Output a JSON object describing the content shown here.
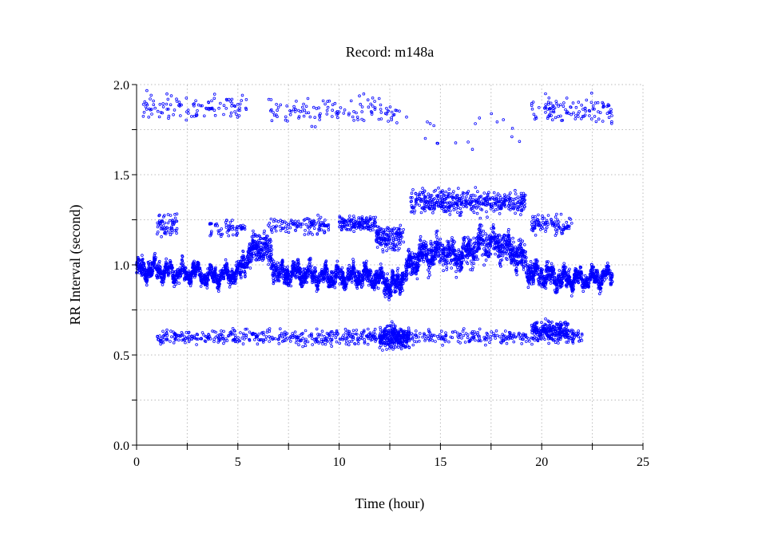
{
  "chart_data": {
    "type": "scatter",
    "title": "Record:  m148a",
    "xlabel": "Time (hour)",
    "ylabel": "RR Interval (second)",
    "xlim": [
      0,
      25
    ],
    "ylim": [
      0,
      2.0
    ],
    "xticks": [
      "0",
      "5",
      "10",
      "15",
      "20",
      "25"
    ],
    "xtick_values": [
      0,
      5,
      10,
      15,
      20,
      25
    ],
    "yticks": [
      "0.0",
      "0.5",
      "1.0",
      "1.5",
      "2.0"
    ],
    "ytick_values": [
      0,
      0.5,
      1.0,
      1.5,
      2.0
    ],
    "grid": true,
    "grid_step": {
      "x": 2.5,
      "y": 0.25
    },
    "marker": "open-circle",
    "color": "#0000ff",
    "note": "Point cloud summarised: main RR band as [hour, center, half-spread]; ectopic clusters as [hour_start, hour_end, rr_center, rr_half_spread, count]",
    "main_band": [
      [
        0,
        0.97,
        0.07
      ],
      [
        0.5,
        0.98,
        0.07
      ],
      [
        1,
        0.97,
        0.07
      ],
      [
        2,
        0.95,
        0.06
      ],
      [
        3,
        0.96,
        0.06
      ],
      [
        3.5,
        0.93,
        0.06
      ],
      [
        4,
        0.94,
        0.06
      ],
      [
        5,
        0.95,
        0.07
      ],
      [
        5.5,
        1.05,
        0.1
      ],
      [
        6,
        1.1,
        0.12
      ],
      [
        6.5,
        1.07,
        0.12
      ],
      [
        7,
        0.95,
        0.08
      ],
      [
        8,
        0.95,
        0.07
      ],
      [
        9,
        0.94,
        0.07
      ],
      [
        10,
        0.93,
        0.07
      ],
      [
        11,
        0.94,
        0.07
      ],
      [
        12,
        0.92,
        0.07
      ],
      [
        12.8,
        0.88,
        0.08
      ],
      [
        13.5,
        1.0,
        0.09
      ],
      [
        14,
        1.05,
        0.1
      ],
      [
        15,
        1.07,
        0.11
      ],
      [
        16,
        1.05,
        0.12
      ],
      [
        17,
        1.12,
        0.12
      ],
      [
        18,
        1.12,
        0.12
      ],
      [
        19,
        1.05,
        0.12
      ],
      [
        19.5,
        0.95,
        0.08
      ],
      [
        20,
        0.95,
        0.08
      ],
      [
        21,
        0.92,
        0.07
      ],
      [
        22,
        0.92,
        0.06
      ],
      [
        23,
        0.93,
        0.06
      ],
      [
        23.5,
        0.95,
        0.06
      ]
    ],
    "clusters": [
      [
        0.2,
        5.5,
        1.88,
        0.1,
        110
      ],
      [
        6.5,
        13.0,
        1.86,
        0.12,
        120
      ],
      [
        19.5,
        23.5,
        1.85,
        0.12,
        110
      ],
      [
        13,
        19,
        1.72,
        0.2,
        18
      ],
      [
        1,
        22,
        0.6,
        0.06,
        700
      ],
      [
        12,
        13.5,
        0.6,
        0.1,
        250
      ],
      [
        19.5,
        21.3,
        0.64,
        0.07,
        200
      ],
      [
        1,
        2,
        1.22,
        0.1,
        60
      ],
      [
        3.6,
        5.5,
        1.2,
        0.08,
        60
      ],
      [
        6.5,
        9.5,
        1.22,
        0.07,
        120
      ],
      [
        10,
        11.8,
        1.23,
        0.06,
        140
      ],
      [
        11.8,
        13.2,
        1.15,
        0.1,
        150
      ],
      [
        13.5,
        19.2,
        1.35,
        0.1,
        450
      ],
      [
        19.5,
        21.5,
        1.22,
        0.08,
        100
      ]
    ]
  }
}
